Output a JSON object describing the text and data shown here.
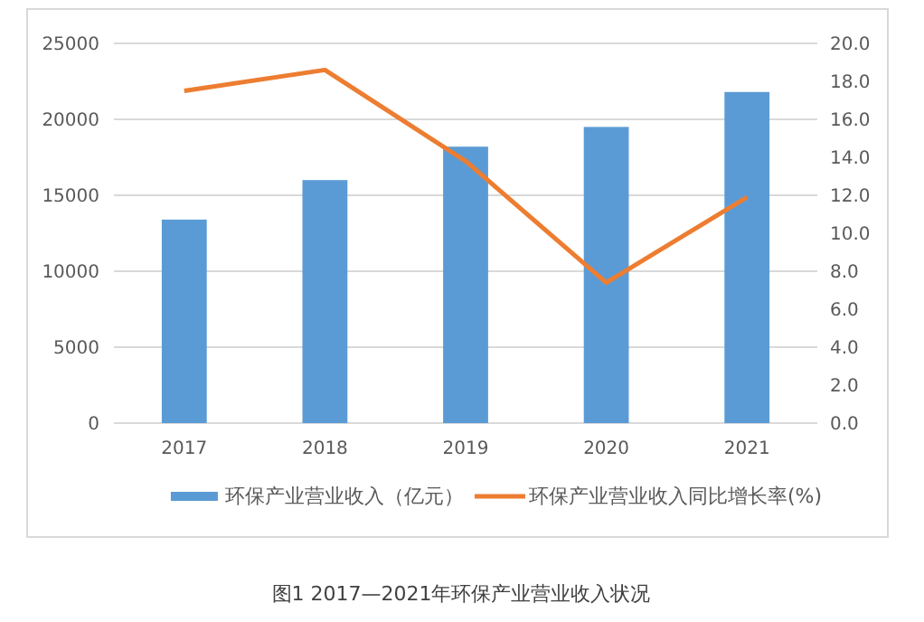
{
  "chart_data": {
    "type": "bar",
    "categories": [
      "2017",
      "2018",
      "2019",
      "2020",
      "2021"
    ],
    "series": [
      {
        "name": "环保产业营业收入（亿元）",
        "color": "#5b9bd5",
        "values": [
          13400,
          16000,
          18200,
          19500,
          21800
        ]
      },
      {
        "name": "环保产业营业收入同比增长率(%)",
        "type": "line",
        "axis": "y2",
        "color": "#ed7d31",
        "values": [
          17.5,
          18.6,
          13.8,
          7.4,
          11.9
        ]
      }
    ],
    "ylim": [
      0,
      25000
    ],
    "yticks": [
      0,
      5000,
      10000,
      15000,
      20000,
      25000
    ],
    "y2lim": [
      0,
      20
    ],
    "y2ticks": [
      {
        "value": 0,
        "label": "0.0"
      },
      {
        "value": 2,
        "label": "2.0"
      },
      {
        "value": 4,
        "label": "4.0"
      },
      {
        "value": 6,
        "label": "6.0"
      },
      {
        "value": 8,
        "label": "8.0"
      },
      {
        "value": 10,
        "label": "10.0"
      },
      {
        "value": 12,
        "label": "12.0"
      },
      {
        "value": 14,
        "label": "14.0"
      },
      {
        "value": 16,
        "label": "16.0"
      },
      {
        "value": 18,
        "label": "18.0"
      },
      {
        "value": 20,
        "label": "20.0"
      }
    ],
    "grid": "y",
    "legend": "bottom",
    "marker": "none",
    "annotations": [
      "图1 2017—2021年环保产业营业收入状况"
    ]
  }
}
